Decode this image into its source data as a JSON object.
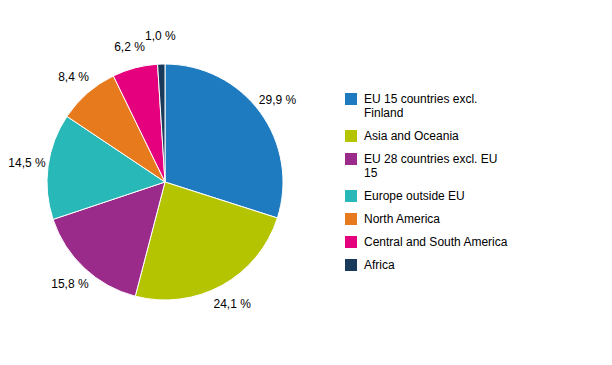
{
  "chart_data": {
    "type": "pie",
    "categories": [
      "EU 15 countries excl.\nFinland",
      "Asia and Oceania",
      "EU 28 countries excl. EU\n15",
      "Europe outside EU",
      "North America",
      "Central and South America",
      "Africa"
    ],
    "values": [
      29.9,
      24.1,
      15.8,
      14.5,
      8.4,
      6.2,
      1.0
    ],
    "value_labels": [
      "29,9 %",
      "24,1 %",
      "15,8 %",
      "14,5 %",
      "8,4 %",
      "6,2 %",
      "1,0 %"
    ],
    "colors": [
      "#1f7bbf",
      "#b5c400",
      "#9b2b8a",
      "#29b8b8",
      "#e87a1e",
      "#e5007d",
      "#1a3a5c"
    ],
    "data_labels": true,
    "legend": "right"
  }
}
